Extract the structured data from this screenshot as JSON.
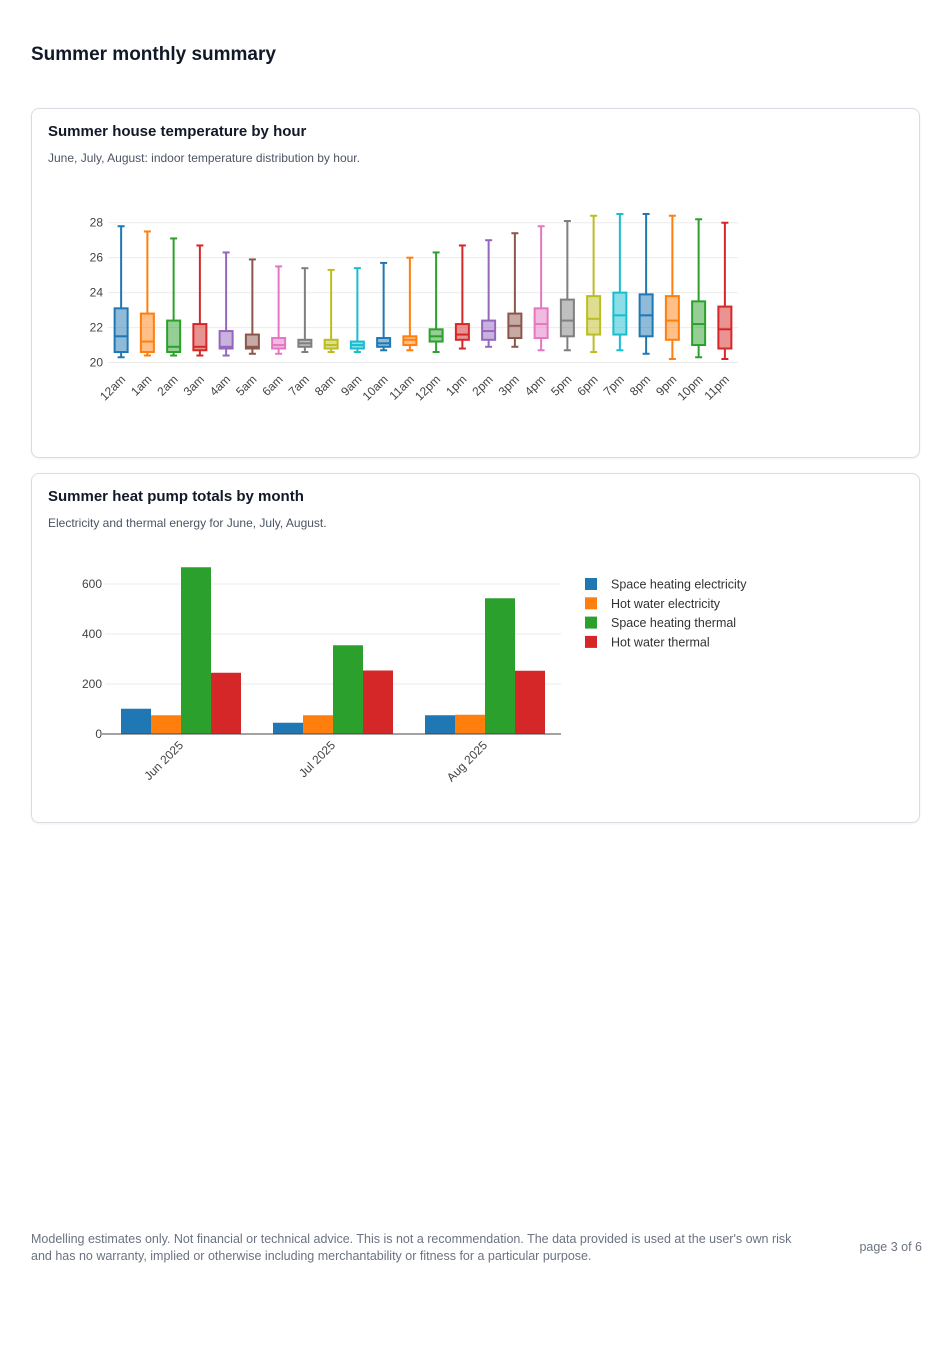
{
  "page": {
    "title": "Summer monthly summary",
    "footer": "Modelling estimates only. Not financial or technical advice. This is not a recommendation. The data provided is used at the user's own risk and has no warranty, implied or otherwise including merchantability or fitness for a particular purpose.",
    "page_number": "page 3 of 6"
  },
  "cards": [
    {
      "title": "Summer house temperature by hour",
      "subtitle": "June, July, August: indoor temperature distribution by hour."
    },
    {
      "title": "Summer heat pump totals by month",
      "subtitle": "Electricity and thermal energy for June, July, August."
    }
  ],
  "chart_data": [
    {
      "type": "box",
      "title": "Summer house temperature by hour",
      "xlabel": "",
      "ylabel": "",
      "ylim": [
        19.8,
        28.5
      ],
      "yticks": [
        20,
        22,
        24,
        26,
        28
      ],
      "grid": true,
      "legend": "none",
      "colors": [
        "#1f77b4",
        "#ff7f0e",
        "#2ca02c",
        "#d62728",
        "#9467bd",
        "#8c564b",
        "#e377c2",
        "#7f7f7f",
        "#bcbd22",
        "#17becf"
      ],
      "categories": [
        "12am",
        "1am",
        "2am",
        "3am",
        "4am",
        "5am",
        "6am",
        "7am",
        "8am",
        "9am",
        "10am",
        "11am",
        "12pm",
        "1pm",
        "2pm",
        "3pm",
        "4pm",
        "5pm",
        "6pm",
        "7pm",
        "8pm",
        "9pm",
        "10pm",
        "11pm"
      ],
      "boxes": [
        {
          "min": 20.3,
          "q1": 20.6,
          "median": 21.5,
          "q3": 23.1,
          "max": 27.8
        },
        {
          "min": 20.4,
          "q1": 20.6,
          "median": 21.2,
          "q3": 22.8,
          "max": 27.5
        },
        {
          "min": 20.4,
          "q1": 20.6,
          "median": 20.9,
          "q3": 22.4,
          "max": 27.1
        },
        {
          "min": 20.4,
          "q1": 20.7,
          "median": 20.9,
          "q3": 22.2,
          "max": 26.7
        },
        {
          "min": 20.4,
          "q1": 20.8,
          "median": 20.9,
          "q3": 21.8,
          "max": 26.3
        },
        {
          "min": 20.5,
          "q1": 20.8,
          "median": 20.9,
          "q3": 21.6,
          "max": 25.9
        },
        {
          "min": 20.5,
          "q1": 20.8,
          "median": 21.0,
          "q3": 21.4,
          "max": 25.5
        },
        {
          "min": 20.6,
          "q1": 20.9,
          "median": 21.1,
          "q3": 21.3,
          "max": 25.4
        },
        {
          "min": 20.6,
          "q1": 20.8,
          "median": 21.0,
          "q3": 21.3,
          "max": 25.3
        },
        {
          "min": 20.6,
          "q1": 20.8,
          "median": 21.0,
          "q3": 21.2,
          "max": 25.4
        },
        {
          "min": 20.7,
          "q1": 20.9,
          "median": 21.1,
          "q3": 21.4,
          "max": 25.7
        },
        {
          "min": 20.7,
          "q1": 21.0,
          "median": 21.3,
          "q3": 21.5,
          "max": 26.0
        },
        {
          "min": 20.6,
          "q1": 21.2,
          "median": 21.5,
          "q3": 21.9,
          "max": 26.3
        },
        {
          "min": 20.8,
          "q1": 21.3,
          "median": 21.6,
          "q3": 22.2,
          "max": 26.7
        },
        {
          "min": 20.9,
          "q1": 21.3,
          "median": 21.8,
          "q3": 22.4,
          "max": 27.0
        },
        {
          "min": 20.9,
          "q1": 21.4,
          "median": 22.1,
          "q3": 22.8,
          "max": 27.4
        },
        {
          "min": 20.7,
          "q1": 21.4,
          "median": 22.2,
          "q3": 23.1,
          "max": 27.8
        },
        {
          "min": 20.7,
          "q1": 21.5,
          "median": 22.4,
          "q3": 23.6,
          "max": 28.1
        },
        {
          "min": 20.6,
          "q1": 21.6,
          "median": 22.5,
          "q3": 23.8,
          "max": 28.4
        },
        {
          "min": 20.7,
          "q1": 21.6,
          "median": 22.7,
          "q3": 24.0,
          "max": 28.5
        },
        {
          "min": 20.5,
          "q1": 21.5,
          "median": 22.7,
          "q3": 23.9,
          "max": 28.5
        },
        {
          "min": 20.2,
          "q1": 21.3,
          "median": 22.4,
          "q3": 23.8,
          "max": 28.4
        },
        {
          "min": 20.3,
          "q1": 21.0,
          "median": 22.2,
          "q3": 23.5,
          "max": 28.2
        },
        {
          "min": 20.2,
          "q1": 20.8,
          "median": 21.9,
          "q3": 23.2,
          "max": 28.0
        }
      ]
    },
    {
      "type": "bar",
      "title": "Summer heat pump totals by month",
      "xlabel": "",
      "ylabel": "",
      "ylim": [
        0,
        680
      ],
      "yticks": [
        0,
        200,
        400,
        600
      ],
      "grid": true,
      "legend": "right",
      "categories": [
        "Jun 2025",
        "Jul 2025",
        "Aug 2025"
      ],
      "series": [
        {
          "name": "Space heating electricity",
          "color": "#1f77b4",
          "values": [
            101,
            45,
            75
          ]
        },
        {
          "name": "Hot water electricity",
          "color": "#ff7f0e",
          "values": [
            75,
            75,
            77
          ]
        },
        {
          "name": "Space heating thermal",
          "color": "#2ca02c",
          "values": [
            667,
            355,
            543
          ]
        },
        {
          "name": "Hot water thermal",
          "color": "#d62728",
          "values": [
            245,
            254,
            253
          ]
        }
      ]
    }
  ]
}
